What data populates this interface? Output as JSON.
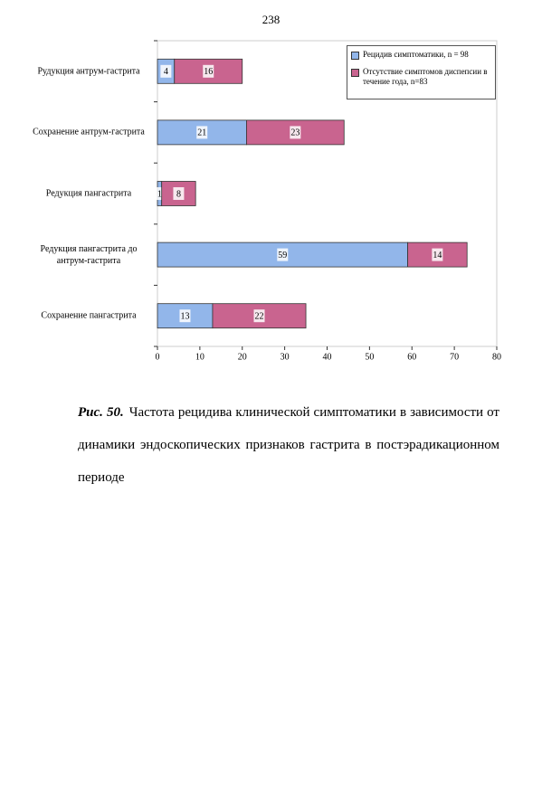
{
  "page_number": "238",
  "chart_data": {
    "type": "stacked-barh",
    "categories": [
      "Рудукция антрум-гастрита",
      "Сохранение антрум-гастрита",
      "Редукция пангастрита",
      "Редукция пангастрита до антрум-гастрита",
      "Сохранение пангастрита"
    ],
    "series": [
      {
        "name": "Рецидив симптоматики, n = 98",
        "color": "#92b6ea",
        "values": [
          4,
          21,
          1,
          59,
          13
        ]
      },
      {
        "name": "Отсутствие симптомов диспепсии в течение года, n=83",
        "color": "#c9648f",
        "values": [
          16,
          23,
          8,
          14,
          22
        ]
      }
    ],
    "xlim": [
      0,
      80
    ],
    "xticks": [
      0,
      10,
      20,
      30,
      40,
      50,
      60,
      70,
      80
    ]
  },
  "caption": {
    "label": "Рис. 50.",
    "text": "Частота рецидива клинической симптоматики в зависимости от динамики эндоскопических признаков гастрита в постэрадикационном периоде"
  }
}
